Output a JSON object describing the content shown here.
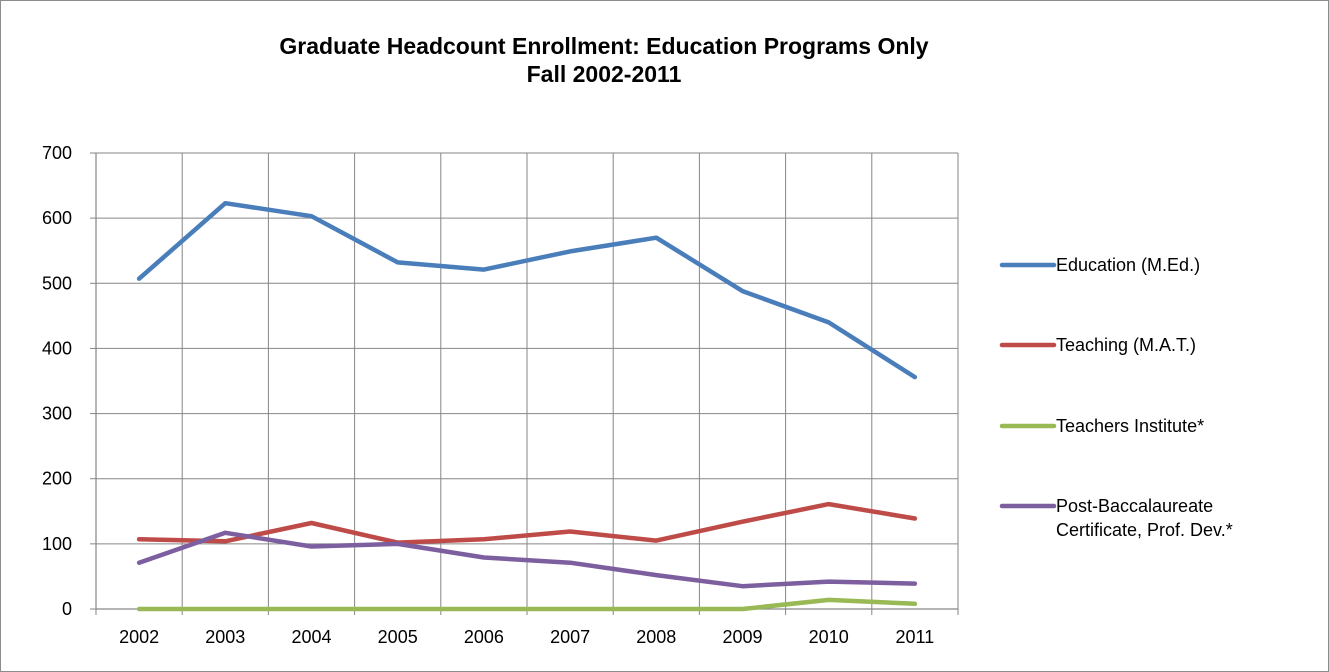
{
  "chart_data": {
    "type": "line",
    "title": "Graduate Headcount Enrollment: Education Programs Only",
    "subtitle": "Fall 2002-2011",
    "xlabel": "",
    "ylabel": "",
    "categories": [
      "2002",
      "2003",
      "2004",
      "2005",
      "2006",
      "2007",
      "2008",
      "2009",
      "2010",
      "2011"
    ],
    "ylim": [
      0,
      700
    ],
    "yticks": [
      "0",
      "100",
      "200",
      "300",
      "400",
      "500",
      "600",
      "700"
    ],
    "grid": true,
    "legend_position": "right",
    "series": [
      {
        "name": "Education (M.Ed.)",
        "color": "#4a7ebb",
        "values": [
          507,
          623,
          603,
          532,
          521,
          549,
          570,
          488,
          440,
          356
        ]
      },
      {
        "name": "Teaching (M.A.T.)",
        "color": "#be4b48",
        "values": [
          107,
          104,
          132,
          102,
          107,
          119,
          105,
          134,
          161,
          139
        ]
      },
      {
        "name": "Teachers Institute*",
        "color": "#98b954",
        "values": [
          0,
          0,
          0,
          0,
          0,
          0,
          0,
          0,
          14,
          8
        ]
      },
      {
        "name": [
          "Post-Baccalaureate",
          "Certificate, Prof. Dev.*"
        ],
        "color": "#7d5fa0",
        "values": [
          71,
          117,
          96,
          100,
          79,
          71,
          52,
          35,
          42,
          39
        ]
      }
    ]
  }
}
